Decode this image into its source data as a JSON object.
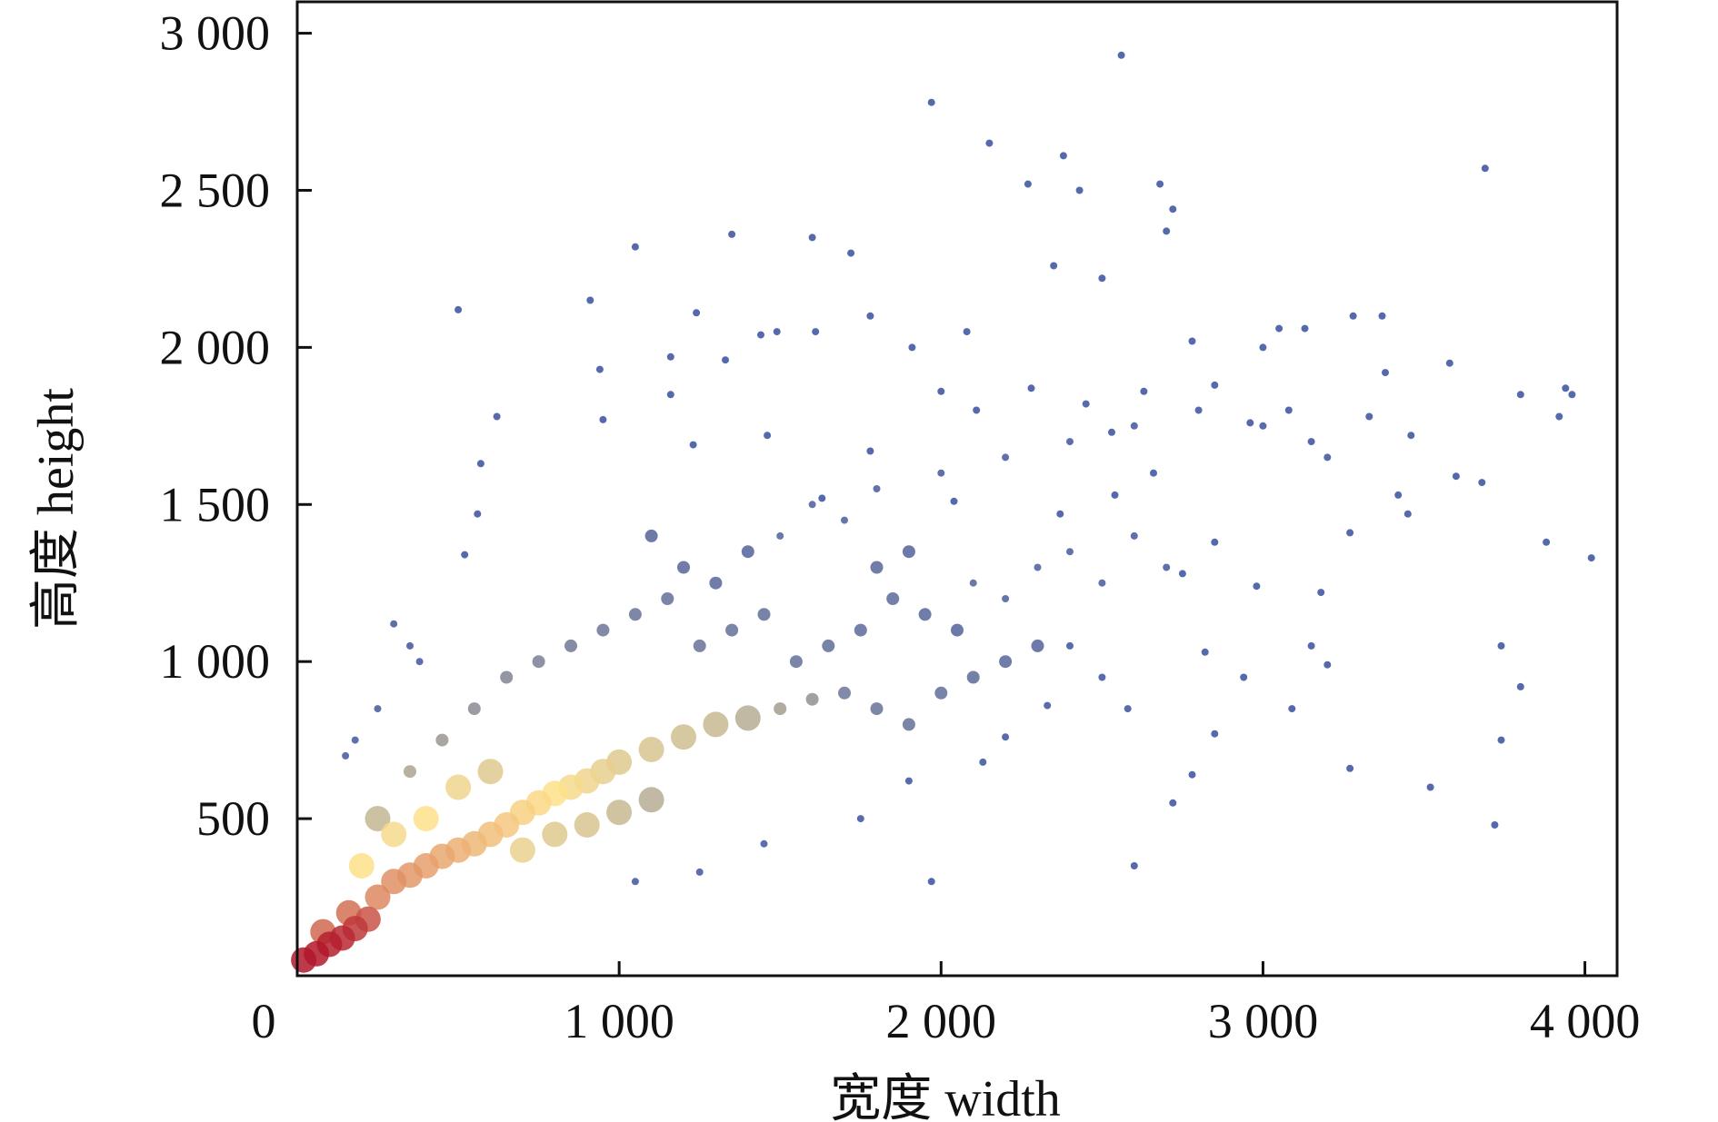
{
  "chart_data": {
    "type": "scatter",
    "title": "",
    "xlabel": "宽度 width",
    "ylabel": "高度 height",
    "xlim": [
      0,
      4100
    ],
    "ylim": [
      0,
      3100
    ],
    "x_ticks": [
      {
        "value": 0,
        "label": "0"
      },
      {
        "value": 1000,
        "label": "1 000"
      },
      {
        "value": 2000,
        "label": "2 000"
      },
      {
        "value": 3000,
        "label": "3 000"
      },
      {
        "value": 4000,
        "label": "4 000"
      }
    ],
    "y_ticks": [
      {
        "value": 500,
        "label": "500"
      },
      {
        "value": 1000,
        "label": "1 000"
      },
      {
        "value": 1500,
        "label": "1 500"
      },
      {
        "value": 2000,
        "label": "2 000"
      },
      {
        "value": 2500,
        "label": "2 500"
      },
      {
        "value": 3000,
        "label": "3 000"
      }
    ],
    "grid": false,
    "legend": "none",
    "colormap": "density (red → yellow → blue)",
    "colors": {
      "high": "#b2182b",
      "mid": "#fee08b",
      "low": "#3a53a4"
    },
    "points": [
      [
        20,
        50,
        1.0
      ],
      [
        60,
        70,
        1.0
      ],
      [
        100,
        100,
        0.98
      ],
      [
        140,
        120,
        0.96
      ],
      [
        180,
        150,
        0.92
      ],
      [
        220,
        180,
        0.85
      ],
      [
        80,
        140,
        0.8
      ],
      [
        160,
        200,
        0.78
      ],
      [
        250,
        250,
        0.72
      ],
      [
        300,
        300,
        0.7
      ],
      [
        350,
        320,
        0.68
      ],
      [
        400,
        350,
        0.66
      ],
      [
        450,
        380,
        0.64
      ],
      [
        500,
        400,
        0.62
      ],
      [
        550,
        420,
        0.6
      ],
      [
        600,
        450,
        0.58
      ],
      [
        650,
        480,
        0.56
      ],
      [
        700,
        520,
        0.54
      ],
      [
        750,
        550,
        0.52
      ],
      [
        800,
        580,
        0.5
      ],
      [
        850,
        600,
        0.48
      ],
      [
        900,
        620,
        0.46
      ],
      [
        950,
        650,
        0.44
      ],
      [
        1000,
        680,
        0.42
      ],
      [
        1100,
        720,
        0.4
      ],
      [
        1200,
        760,
        0.38
      ],
      [
        1300,
        800,
        0.36
      ],
      [
        1400,
        820,
        0.32
      ],
      [
        1500,
        850,
        0.28
      ],
      [
        1600,
        880,
        0.24
      ],
      [
        400,
        500,
        0.5
      ],
      [
        500,
        600,
        0.46
      ],
      [
        600,
        650,
        0.42
      ],
      [
        300,
        450,
        0.48
      ],
      [
        200,
        350,
        0.5
      ],
      [
        700,
        400,
        0.45
      ],
      [
        800,
        450,
        0.42
      ],
      [
        900,
        480,
        0.4
      ],
      [
        1000,
        520,
        0.36
      ],
      [
        1100,
        560,
        0.32
      ],
      [
        250,
        500,
        0.35
      ],
      [
        350,
        650,
        0.3
      ],
      [
        450,
        750,
        0.26
      ],
      [
        550,
        850,
        0.22
      ],
      [
        650,
        950,
        0.2
      ],
      [
        750,
        1000,
        0.18
      ],
      [
        850,
        1050,
        0.16
      ],
      [
        950,
        1100,
        0.15
      ],
      [
        1050,
        1150,
        0.14
      ],
      [
        1150,
        1200,
        0.13
      ],
      [
        1250,
        1050,
        0.14
      ],
      [
        1350,
        1100,
        0.13
      ],
      [
        1450,
        1150,
        0.12
      ],
      [
        1550,
        1000,
        0.13
      ],
      [
        1650,
        1050,
        0.12
      ],
      [
        1750,
        1100,
        0.11
      ],
      [
        1850,
        1200,
        0.11
      ],
      [
        1950,
        1150,
        0.1
      ],
      [
        2050,
        1100,
        0.09
      ],
      [
        1800,
        1300,
        0.1
      ],
      [
        1900,
        1350,
        0.09
      ],
      [
        2100,
        1250,
        0.08
      ],
      [
        2200,
        1200,
        0.07
      ],
      [
        2300,
        1300,
        0.07
      ],
      [
        2400,
        1350,
        0.06
      ],
      [
        2500,
        1250,
        0.06
      ],
      [
        2600,
        1400,
        0.05
      ],
      [
        2700,
        1300,
        0.05
      ],
      [
        1700,
        900,
        0.15
      ],
      [
        1800,
        850,
        0.14
      ],
      [
        1900,
        800,
        0.13
      ],
      [
        2000,
        900,
        0.12
      ],
      [
        2100,
        950,
        0.11
      ],
      [
        2200,
        1000,
        0.1
      ],
      [
        2300,
        1050,
        0.09
      ],
      [
        1200,
        1300,
        0.1
      ],
      [
        1100,
        1400,
        0.09
      ],
      [
        1300,
        1250,
        0.1
      ],
      [
        1400,
        1350,
        0.09
      ],
      [
        1500,
        1400,
        0.08
      ],
      [
        1600,
        1500,
        0.07
      ],
      [
        1700,
        1450,
        0.07
      ],
      [
        1800,
        1550,
        0.06
      ],
      [
        2000,
        1600,
        0.05
      ],
      [
        2200,
        1650,
        0.05
      ],
      [
        2400,
        1700,
        0.04
      ],
      [
        2600,
        1750,
        0.04
      ],
      [
        2800,
        1800,
        0.03
      ],
      [
        3000,
        1750,
        0.03
      ],
      [
        3200,
        1650,
        0.03
      ],
      [
        500,
        2120,
        0.02
      ],
      [
        1050,
        2320,
        0.02
      ],
      [
        1350,
        2360,
        0.02
      ],
      [
        1600,
        2350,
        0.02
      ],
      [
        1720,
        2300,
        0.02
      ],
      [
        1970,
        2780,
        0.02
      ],
      [
        2150,
        2650,
        0.02
      ],
      [
        2380,
        2610,
        0.02
      ],
      [
        2560,
        2930,
        0.02
      ],
      [
        2680,
        2520,
        0.02
      ],
      [
        2720,
        2440,
        0.02
      ],
      [
        2430,
        2500,
        0.02
      ],
      [
        2270,
        2520,
        0.02
      ],
      [
        3690,
        2570,
        0.02
      ],
      [
        2500,
        2220,
        0.02
      ],
      [
        2350,
        2260,
        0.02
      ],
      [
        2700,
        2370,
        0.02
      ],
      [
        3050,
        2060,
        0.02
      ],
      [
        3130,
        2060,
        0.02
      ],
      [
        3280,
        2100,
        0.02
      ],
      [
        3370,
        2100,
        0.02
      ],
      [
        3580,
        1950,
        0.02
      ],
      [
        3800,
        1850,
        0.02
      ],
      [
        3940,
        1870,
        0.02
      ],
      [
        3960,
        1850,
        0.02
      ],
      [
        3920,
        1780,
        0.02
      ],
      [
        4020,
        1330,
        0.02
      ],
      [
        3880,
        1380,
        0.02
      ],
      [
        3740,
        1050,
        0.02
      ],
      [
        3800,
        920,
        0.02
      ],
      [
        3740,
        750,
        0.02
      ],
      [
        3720,
        480,
        0.02
      ],
      [
        3520,
        600,
        0.02
      ],
      [
        3270,
        660,
        0.02
      ],
      [
        2720,
        550,
        0.02
      ],
      [
        2600,
        350,
        0.02
      ],
      [
        1970,
        300,
        0.02
      ],
      [
        2780,
        640,
        0.02
      ],
      [
        2850,
        770,
        0.02
      ],
      [
        3090,
        850,
        0.02
      ],
      [
        3200,
        990,
        0.02
      ],
      [
        2940,
        950,
        0.02
      ],
      [
        3150,
        1050,
        0.02
      ],
      [
        2820,
        1030,
        0.02
      ],
      [
        3680,
        1570,
        0.02
      ],
      [
        3600,
        1590,
        0.02
      ],
      [
        3420,
        1530,
        0.02
      ],
      [
        3450,
        1470,
        0.02
      ],
      [
        3270,
        1410,
        0.02
      ],
      [
        3180,
        1220,
        0.02
      ],
      [
        2980,
        1240,
        0.02
      ],
      [
        2850,
        1380,
        0.02
      ],
      [
        2750,
        1280,
        0.02
      ],
      [
        3080,
        1800,
        0.02
      ],
      [
        3150,
        1700,
        0.02
      ],
      [
        3330,
        1780,
        0.02
      ],
      [
        3380,
        1920,
        0.02
      ],
      [
        3460,
        1720,
        0.02
      ],
      [
        2960,
        1760,
        0.02
      ],
      [
        3000,
        2000,
        0.02
      ],
      [
        2780,
        2020,
        0.02
      ],
      [
        2850,
        1880,
        0.02
      ],
      [
        2630,
        1860,
        0.02
      ],
      [
        2530,
        1730,
        0.02
      ],
      [
        2450,
        1820,
        0.02
      ],
      [
        2280,
        1870,
        0.02
      ],
      [
        2110,
        1800,
        0.02
      ],
      [
        2000,
        1860,
        0.02
      ],
      [
        2080,
        2050,
        0.02
      ],
      [
        1910,
        2000,
        0.02
      ],
      [
        1780,
        2100,
        0.02
      ],
      [
        1610,
        2050,
        0.02
      ],
      [
        1490,
        2050,
        0.02
      ],
      [
        1440,
        2040,
        0.02
      ],
      [
        1330,
        1960,
        0.02
      ],
      [
        1160,
        1970,
        0.02
      ],
      [
        1240,
        2110,
        0.02
      ],
      [
        940,
        1930,
        0.02
      ],
      [
        910,
        2150,
        0.02
      ],
      [
        620,
        1780,
        0.02
      ],
      [
        570,
        1630,
        0.02
      ],
      [
        560,
        1470,
        0.02
      ],
      [
        520,
        1340,
        0.02
      ],
      [
        950,
        1770,
        0.02
      ],
      [
        1160,
        1850,
        0.02
      ],
      [
        1230,
        1690,
        0.02
      ],
      [
        1460,
        1720,
        0.02
      ],
      [
        1630,
        1520,
        0.02
      ],
      [
        1780,
        1670,
        0.02
      ],
      [
        2040,
        1510,
        0.02
      ],
      [
        2370,
        1470,
        0.02
      ],
      [
        2540,
        1530,
        0.02
      ],
      [
        2660,
        1600,
        0.02
      ],
      [
        2400,
        1050,
        0.03
      ],
      [
        2500,
        950,
        0.03
      ],
      [
        2580,
        850,
        0.03
      ],
      [
        2330,
        860,
        0.03
      ],
      [
        2200,
        760,
        0.03
      ],
      [
        2130,
        680,
        0.03
      ],
      [
        1900,
        620,
        0.03
      ],
      [
        1750,
        500,
        0.03
      ],
      [
        1450,
        420,
        0.04
      ],
      [
        1250,
        330,
        0.04
      ],
      [
        1050,
        300,
        0.04
      ],
      [
        350,
        1050,
        0.04
      ],
      [
        300,
        1120,
        0.04
      ],
      [
        380,
        1000,
        0.04
      ],
      [
        250,
        850,
        0.05
      ],
      [
        180,
        750,
        0.05
      ],
      [
        150,
        700,
        0.05
      ]
    ]
  }
}
